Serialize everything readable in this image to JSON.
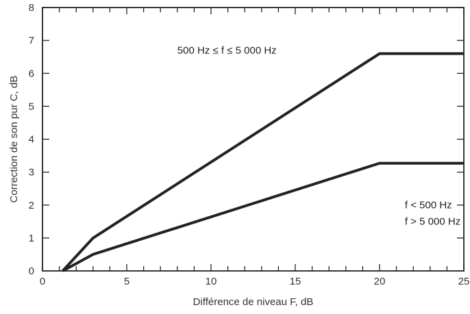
{
  "chart_data": {
    "type": "line",
    "xlabel": "Différence de niveau F, dB",
    "ylabel": "Correction de son pur C, dB",
    "xlim": [
      0,
      25
    ],
    "ylim": [
      0,
      8
    ],
    "x_ticks": [
      0,
      5,
      10,
      15,
      20,
      25
    ],
    "y_ticks": [
      0,
      1,
      2,
      3,
      4,
      5,
      6,
      7,
      8
    ],
    "grid": false,
    "line_color": "#222222",
    "series": [
      {
        "x": [
          1.2,
          3,
          20,
          25
        ],
        "y": [
          0,
          1.0,
          6.6,
          6.6
        ]
      },
      {
        "x": [
          1.2,
          3,
          20,
          25
        ],
        "y": [
          0,
          0.5,
          3.27,
          3.27
        ]
      }
    ],
    "annotations": [
      {
        "text": "500 Hz ≤ f ≤ 5 000 Hz",
        "x": 8,
        "y": 6.6
      },
      {
        "text": "f < 500 Hz",
        "x": 21.5,
        "y": 1.9
      },
      {
        "text": "f > 5 000 Hz",
        "x": 21.5,
        "y": 1.4
      }
    ]
  }
}
